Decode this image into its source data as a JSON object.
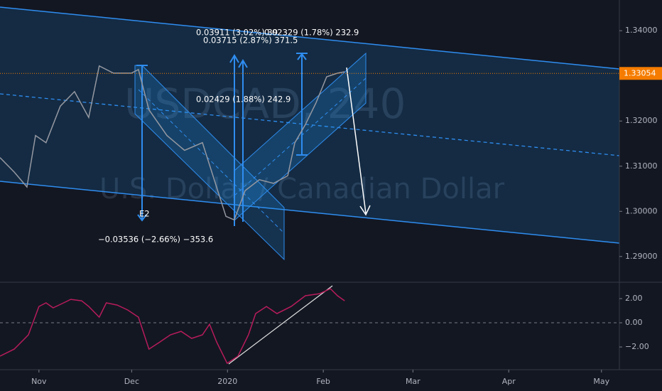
{
  "chart_data": [
    {
      "type": "line",
      "watermark": "USDCAD, 240",
      "subtitle": "U.S. Dollar / Canadian Dollar",
      "annotations": [
        "0.03911 (3.02%) 39",
        "0.03715 (2.87%) 371.5",
        "0.02329 (1.78%) 232.9",
        "0.02429 (1.88%) 242.9",
        "−0.03536 (−2.66%) −353.6",
        "E2"
      ],
      "x": [
        -12.6,
        -8.0,
        -3.9,
        -1.1,
        2.3,
        6.9,
        11.5,
        16.1,
        19.5,
        24.1,
        29.9,
        32.2,
        35.6,
        41.4,
        47.1,
        52.9,
        56.3,
        60.5,
        63.2,
        66.7,
        71.3,
        75.9,
        80.5,
        82.8,
        86.2,
        89.7,
        93.1,
        96.6,
        98.9
      ],
      "series": [
        {
          "color": "#9598a1",
          "values": [
            1.3119,
            1.3087,
            1.3054,
            1.3168,
            1.3152,
            1.3233,
            1.3265,
            1.3208,
            1.3322,
            1.3306,
            1.3306,
            1.3314,
            1.3225,
            1.3168,
            1.3135,
            1.3152,
            1.3079,
            1.2989,
            1.2981,
            1.3046,
            1.307,
            1.3062,
            1.3079,
            1.3152,
            1.3192,
            1.3241,
            1.3298,
            1.3306,
            1.3309
          ]
        }
      ],
      "xlim": [
        -12.6,
        187.8
      ],
      "xticks": [
        {
          "value": 0,
          "label": "Nov"
        },
        {
          "value": 30,
          "label": "Dec"
        },
        {
          "value": 61,
          "label": "2020"
        },
        {
          "value": 92,
          "label": "Feb"
        },
        {
          "value": 121,
          "label": "Mar"
        },
        {
          "value": 152,
          "label": "Apr"
        },
        {
          "value": 182,
          "label": "May"
        }
      ],
      "ylim": [
        1.2843,
        1.3468
      ],
      "yticks": [
        {
          "value": 1.34,
          "label": "1.34000"
        },
        {
          "value": 1.32,
          "label": "1.32000"
        },
        {
          "value": 1.31,
          "label": "1.31000"
        },
        {
          "value": 1.3,
          "label": "1.30000"
        },
        {
          "value": 1.29,
          "label": "1.29000"
        }
      ],
      "last_price": {
        "value": 1.33054,
        "label": "1.33054",
        "color": "#f57c00"
      }
    },
    {
      "type": "line",
      "x": [
        -12.6,
        -8.0,
        -3.4,
        0,
        2.3,
        4.6,
        8.0,
        10.3,
        13.8,
        16.1,
        19.5,
        21.8,
        25.3,
        28.7,
        32.2,
        35.6,
        39.1,
        42.5,
        46.0,
        49.4,
        52.9,
        55.2,
        57.5,
        60.9,
        64.4,
        67.8,
        70.1,
        73.6,
        77.0,
        81.6,
        86.2,
        90.8,
        94.3,
        96.6,
        98.9
      ],
      "series": [
        {
          "color": "#b71c5a",
          "values": [
            -2.76,
            -2.18,
            -1.0,
            1.35,
            1.65,
            1.24,
            1.65,
            1.94,
            1.82,
            1.35,
            0.47,
            1.65,
            1.47,
            1.06,
            0.47,
            -2.18,
            -1.59,
            -1.0,
            -0.71,
            -1.29,
            -1.0,
            -0.12,
            -1.59,
            -3.35,
            -2.76,
            -1.0,
            0.76,
            1.35,
            0.76,
            1.35,
            2.24,
            2.41,
            2.82,
            2.24,
            1.82
          ]
        }
      ],
      "xlim": [
        -12.6,
        187.8
      ],
      "ylim": [
        -3.88,
        3.18
      ],
      "yticks": [
        {
          "value": 2,
          "label": "2.00"
        },
        {
          "value": 0,
          "label": "0.00"
        },
        {
          "value": -2,
          "label": "−2.00"
        }
      ],
      "hline": 0
    }
  ]
}
